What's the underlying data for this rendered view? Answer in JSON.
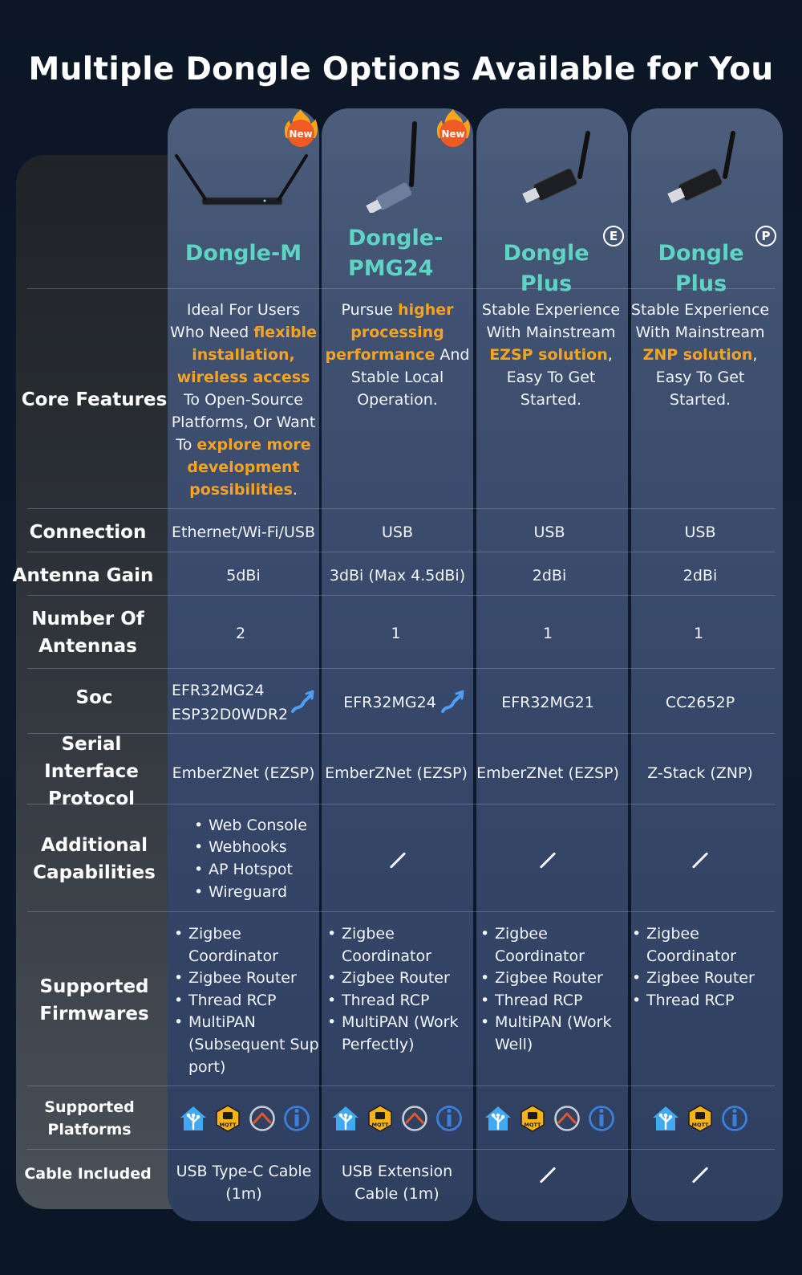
{
  "title": "Multiple Dongle Options Available for You",
  "badge_new": "New",
  "products": [
    {
      "name_line1": "Dongle-M",
      "name_line2": "",
      "badge": "New",
      "suffix": ""
    },
    {
      "name_line1": "Dongle-",
      "name_line2": "PMG24",
      "badge": "New",
      "suffix": ""
    },
    {
      "name_line1": "Dongle Plus",
      "name_line2": "",
      "badge": "",
      "suffix": "E"
    },
    {
      "name_line1": "Dongle Plus",
      "name_line2": "",
      "badge": "",
      "suffix": "P"
    }
  ],
  "row_labels": {
    "core": "Core Features",
    "connection": "Connection",
    "antenna_gain": "Antenna Gain",
    "antennas": "Number Of Antennas",
    "soc": "Soc",
    "serial": "Serial Interface Protocol",
    "additional": "Additional Capabilities",
    "firmwares": "Supported Firmwares",
    "platforms": "Supported Platforms",
    "cable": "Cable Included"
  },
  "core_features": [
    [
      {
        "t": "Ideal For Users Who Need ",
        "hl": false
      },
      {
        "t": "flexible installation, wireless access",
        "hl": true
      },
      {
        "t": " To Open-Source Platforms, Or Want To ",
        "hl": false
      },
      {
        "t": "explore more development possibilities",
        "hl": true
      },
      {
        "t": ".",
        "hl": false
      }
    ],
    [
      {
        "t": "Pursue ",
        "hl": false
      },
      {
        "t": "higher processing performance",
        "hl": true
      },
      {
        "t": " And Stable Local Operation.",
        "hl": false
      }
    ],
    [
      {
        "t": "Stable Experience With Mainstream ",
        "hl": false
      },
      {
        "t": "EZSP solution",
        "hl": true
      },
      {
        "t": ", Easy To Get Started.",
        "hl": false
      }
    ],
    [
      {
        "t": "Stable Experience With Mainstream ",
        "hl": false
      },
      {
        "t": "ZNP solution",
        "hl": true
      },
      {
        "t": ", Easy To Get Started.",
        "hl": false
      }
    ]
  ],
  "connection": [
    "Ethernet/Wi-Fi/USB",
    "USB",
    "USB",
    "USB"
  ],
  "antenna_gain": [
    "5dBi",
    "3dBi (Max 4.5dBi)",
    "2dBi",
    "2dBi"
  ],
  "antennas": [
    "2",
    "1",
    "1",
    "1"
  ],
  "soc": [
    {
      "line1": "EFR32MG24",
      "line2": "ESP32D0WDR2",
      "upgrade_icon": true
    },
    {
      "line1": "EFR32MG24",
      "line2": "",
      "upgrade_icon": true
    },
    {
      "line1": "EFR32MG21",
      "line2": "",
      "upgrade_icon": false
    },
    {
      "line1": "CC2652P",
      "line2": "",
      "upgrade_icon": false
    }
  ],
  "serial": [
    "EmberZNet (EZSP)",
    "EmberZNet (EZSP)",
    "EmberZNet (EZSP)",
    "Z-Stack (ZNP)"
  ],
  "additional": [
    [
      "Web Console",
      "Webhooks",
      "AP Hotspot",
      "Wireguard"
    ],
    [],
    [],
    []
  ],
  "firmwares": [
    [
      "Zigbee Coordinator",
      "Zigbee Router",
      "Thread RCP",
      "MultiPAN (Subsequent Sup port)"
    ],
    [
      "Zigbee Coordinator",
      "Zigbee Router",
      "Thread RCP",
      "MultiPAN (Work Perfectly)"
    ],
    [
      "Zigbee Coordinator",
      "Zigbee Router",
      "Thread RCP",
      "MultiPAN (Work Well)"
    ],
    [
      "Zigbee Coordinator",
      "Zigbee Router",
      "Thread RCP"
    ]
  ],
  "platforms": [
    [
      "home-assistant-icon",
      "mqtt-icon",
      "openhab-icon",
      "iobroker-icon"
    ],
    [
      "home-assistant-icon",
      "mqtt-icon",
      "openhab-icon",
      "iobroker-icon"
    ],
    [
      "home-assistant-icon",
      "mqtt-icon",
      "openhab-icon",
      "iobroker-icon"
    ],
    [
      "home-assistant-icon",
      "mqtt-icon",
      "iobroker-icon"
    ]
  ],
  "mqtt_text": "MQTT",
  "cable": [
    "USB Type-C Cable (1m)",
    "USB Extension Cable (1m)",
    "",
    ""
  ],
  "colors": {
    "accent_orange": "#f6a321",
    "name_teal": "#5fd3c4",
    "badge_red": "#f05a24"
  }
}
